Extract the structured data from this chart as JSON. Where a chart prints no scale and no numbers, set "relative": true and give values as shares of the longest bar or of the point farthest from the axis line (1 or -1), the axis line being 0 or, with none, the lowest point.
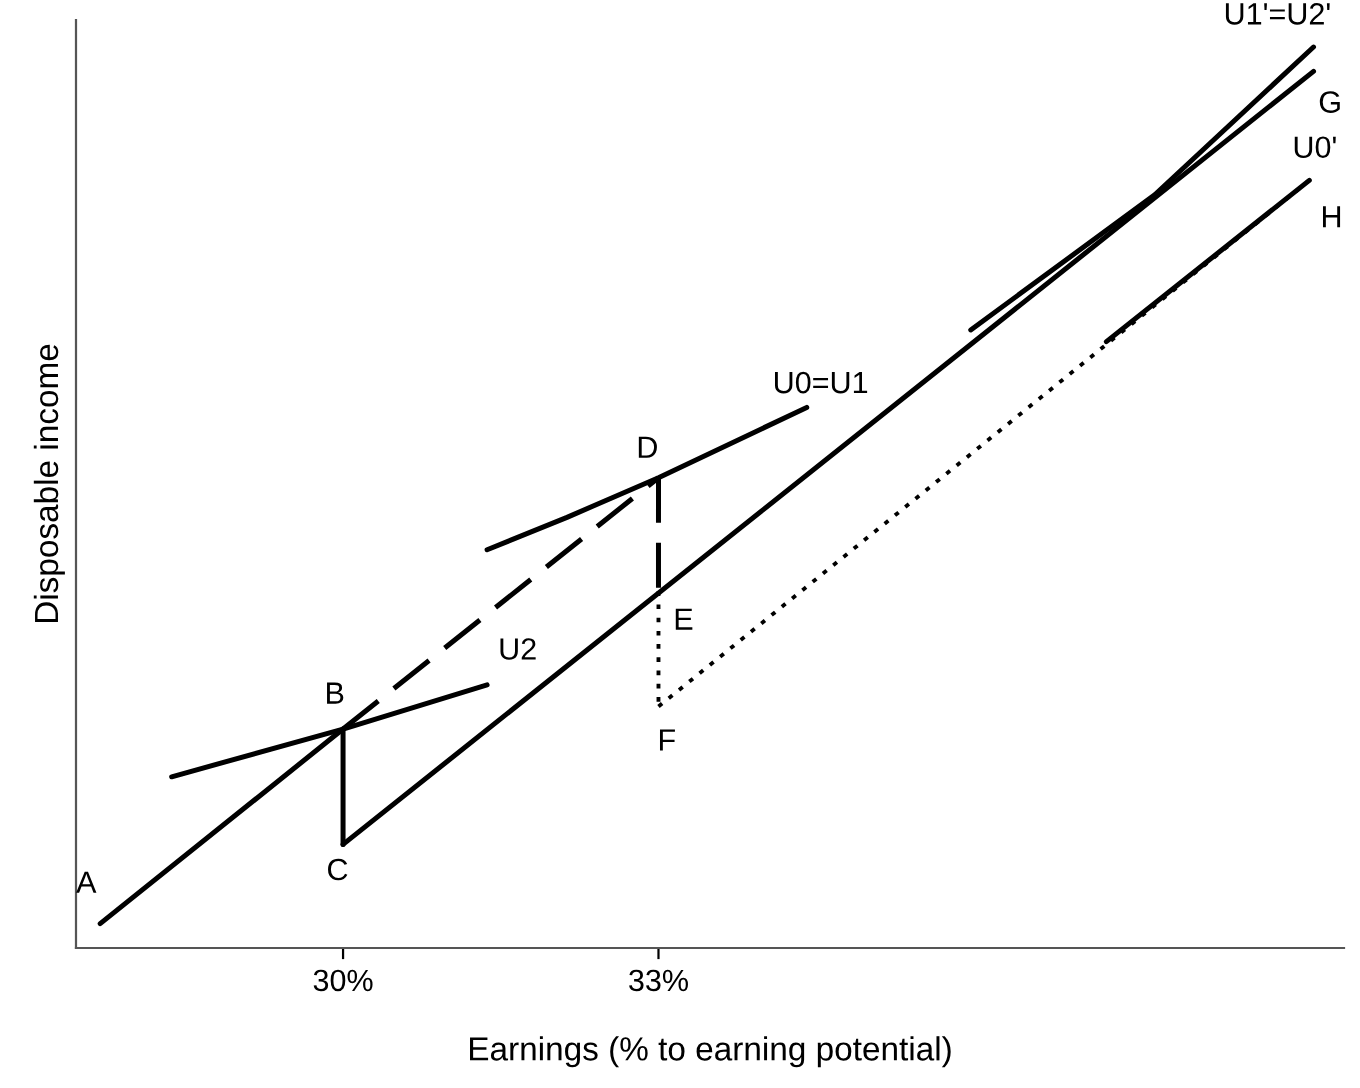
{
  "chart_data": {
    "type": "line",
    "relative": true,
    "xlabel": "Earnings (% to earning potential)",
    "ylabel": "Disposable income",
    "xlim": [
      27.46,
      39.52
    ],
    "xticks": [
      {
        "value": 30,
        "label": "30%"
      },
      {
        "value": 33,
        "label": "33%"
      }
    ],
    "tick_labels": "x",
    "grid": false,
    "marker": "none",
    "series": [
      {
        "color": "#000000",
        "line_style": "solid",
        "x": [
          27.69,
          30.0
        ],
        "values": [
          0.027,
          0.243
        ]
      },
      {
        "color": "#000000",
        "line_style": "dashed",
        "x": [
          30.0,
          33.0
        ],
        "values": [
          0.243,
          0.522
        ]
      },
      {
        "color": "#000000",
        "line_style": "dashed",
        "x": [
          33.0,
          33.0
        ],
        "values": [
          0.522,
          0.396
        ]
      },
      {
        "color": "#000000",
        "line_style": "dotted",
        "x": [
          33.0,
          33.0
        ],
        "values": [
          0.396,
          0.268
        ]
      },
      {
        "color": "#000000",
        "line_style": "dotted",
        "x": [
          33.0,
          39.19
        ],
        "values": [
          0.268,
          0.852
        ]
      },
      {
        "color": "#000000",
        "line_style": "solid",
        "x": [
          30.0,
          30.0
        ],
        "values": [
          0.243,
          0.115
        ]
      },
      {
        "color": "#000000",
        "line_style": "solid",
        "x": [
          30.0,
          39.23
        ],
        "values": [
          0.115,
          0.973
        ]
      },
      {
        "color": "#000000",
        "line_style": "solid",
        "x": [
          28.37,
          30.0,
          31.37
        ],
        "values": [
          0.19,
          0.243,
          0.292
        ]
      },
      {
        "color": "#000000",
        "line_style": "solid",
        "x": [
          31.37,
          32.13,
          33.0,
          34.41
        ],
        "values": [
          0.442,
          0.478,
          0.522,
          0.6
        ]
      },
      {
        "color": "#000000",
        "line_style": "solid",
        "x": [
          35.97,
          37.72,
          39.23
        ],
        "values": [
          0.686,
          0.836,
          1.0
        ]
      },
      {
        "color": "#000000",
        "line_style": "solid",
        "x": [
          37.26,
          39.19
        ],
        "values": [
          0.673,
          0.852
        ]
      }
    ],
    "annotations": [
      {
        "text": "A",
        "x": 27.69,
        "y": 0.027
      },
      {
        "text": "B",
        "x": 30.0,
        "y": 0.243
      },
      {
        "text": "C",
        "x": 30.0,
        "y": 0.115
      },
      {
        "text": "D",
        "x": 33.0,
        "y": 0.522
      },
      {
        "text": "E",
        "x": 33.0,
        "y": 0.396
      },
      {
        "text": "F",
        "x": 33.0,
        "y": 0.268
      },
      {
        "text": "G",
        "x": 39.23,
        "y": 0.973
      },
      {
        "text": "H",
        "x": 39.19,
        "y": 0.852
      },
      {
        "text": "U2",
        "x": 31.37,
        "y": 0.292
      },
      {
        "text": "U0=U1",
        "x": 34.41,
        "y": 0.6
      },
      {
        "text": "U1'=U2'",
        "x": 39.23,
        "y": 1.0
      },
      {
        "text": "U0'",
        "x": 39.19,
        "y": 0.852
      }
    ]
  }
}
